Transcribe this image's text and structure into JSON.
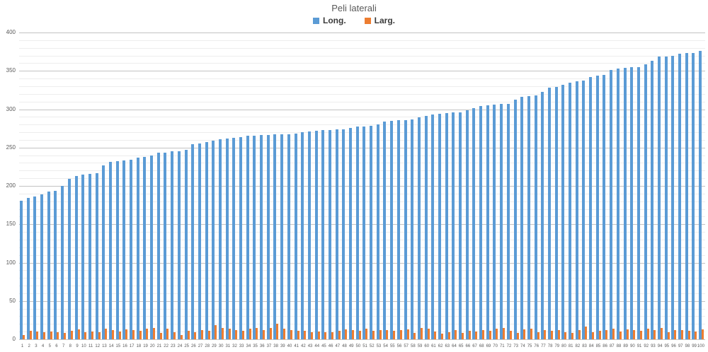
{
  "chart_data": {
    "type": "bar",
    "title": "Peli laterali",
    "legend_position": "top",
    "categories": [
      "1",
      "2",
      "3",
      "4",
      "5",
      "6",
      "7",
      "8",
      "9",
      "10",
      "11",
      "12",
      "13",
      "14",
      "15",
      "16",
      "17",
      "18",
      "19",
      "20",
      "21",
      "22",
      "23",
      "24",
      "25",
      "26",
      "27",
      "28",
      "29",
      "30",
      "31",
      "32",
      "33",
      "34",
      "35",
      "36",
      "37",
      "38",
      "39",
      "40",
      "41",
      "42",
      "43",
      "44",
      "45",
      "46",
      "47",
      "48",
      "49",
      "50",
      "51",
      "52",
      "53",
      "54",
      "55",
      "56",
      "57",
      "58",
      "59",
      "60",
      "61",
      "62",
      "63",
      "64",
      "65",
      "66",
      "67",
      "68",
      "69",
      "70",
      "71",
      "72",
      "73",
      "74",
      "75",
      "76",
      "77",
      "78",
      "79",
      "80",
      "81",
      "82",
      "83",
      "84",
      "85",
      "86",
      "87",
      "88",
      "89",
      "90",
      "91",
      "92",
      "93",
      "94",
      "95",
      "96",
      "97",
      "98",
      "99",
      "100"
    ],
    "series": [
      {
        "name": "Long.",
        "color": "#5B9BD5",
        "values": [
          181,
          184,
          186,
          189,
          193,
          194,
          200,
          209,
          213,
          215,
          216,
          217,
          227,
          231,
          232,
          233,
          234,
          237,
          238,
          240,
          243,
          243,
          245,
          245,
          247,
          254,
          255,
          257,
          259,
          261,
          262,
          263,
          264,
          265,
          265,
          266,
          266,
          267,
          267,
          267,
          268,
          270,
          271,
          272,
          273,
          273,
          274,
          274,
          276,
          277,
          277,
          278,
          280,
          284,
          285,
          286,
          286,
          287,
          289,
          291,
          293,
          294,
          295,
          296,
          296,
          299,
          301,
          304,
          305,
          306,
          307,
          307,
          312,
          316,
          317,
          318,
          323,
          328,
          329,
          332,
          335,
          336,
          337,
          342,
          344,
          345,
          351,
          353,
          354,
          355,
          355,
          359,
          363,
          369,
          369,
          370,
          372,
          373,
          373,
          376
        ]
      },
      {
        "name": "Larg.",
        "color": "#ED7D31",
        "values": [
          6,
          11,
          10,
          9,
          10,
          9,
          8,
          11,
          13,
          9,
          10,
          9,
          14,
          12,
          10,
          13,
          12,
          11,
          14,
          15,
          8,
          14,
          9,
          6,
          11,
          9,
          12,
          11,
          18,
          15,
          14,
          12,
          11,
          14,
          15,
          12,
          15,
          20,
          14,
          12,
          11,
          11,
          9,
          10,
          9,
          9,
          11,
          13,
          12,
          11,
          14,
          11,
          12,
          12,
          11,
          12,
          13,
          8,
          15,
          14,
          10,
          7,
          9,
          12,
          8,
          11,
          10,
          12,
          11,
          14,
          15,
          11,
          8,
          13,
          14,
          9,
          12,
          11,
          12,
          9,
          8,
          12,
          17,
          9,
          11,
          12,
          14,
          10,
          13,
          12,
          11,
          14,
          12,
          15,
          9,
          12,
          12,
          11,
          10,
          13
        ]
      }
    ],
    "xlabel": "",
    "ylabel": "",
    "ylim": [
      0,
      400
    ],
    "yticks": [
      0,
      50,
      100,
      150,
      200,
      250,
      300,
      350,
      400
    ],
    "grid": {
      "minor_step": 10,
      "major_step": 50,
      "minor_color": "#ededed",
      "major_color": "#c2c2c2",
      "axis_color": "#a6a6a6"
    }
  }
}
